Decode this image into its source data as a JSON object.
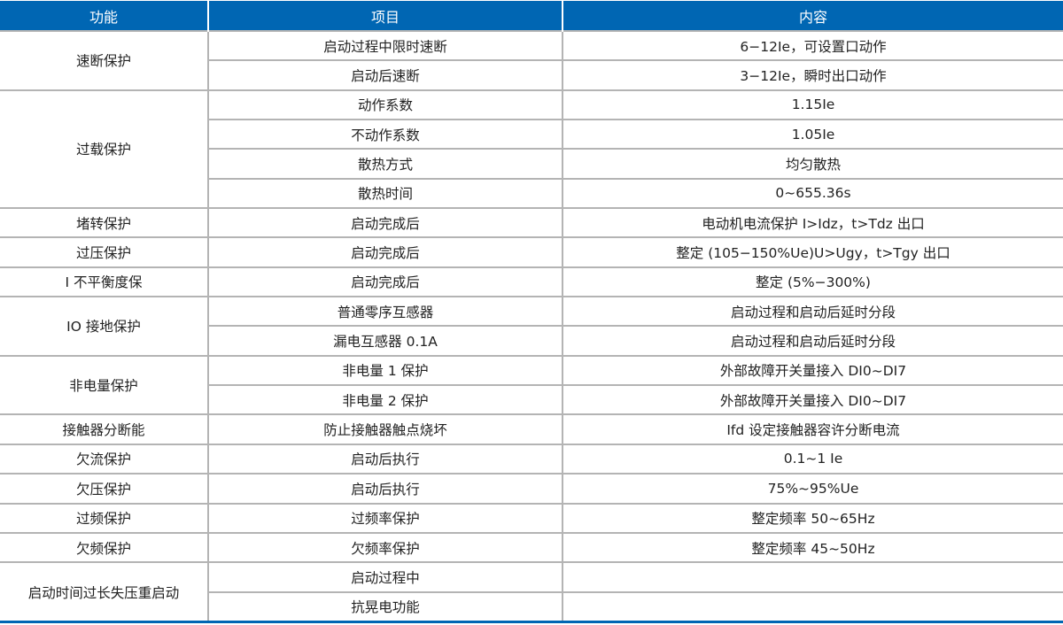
{
  "headers": [
    "功能",
    "项目",
    "内容"
  ],
  "groups": [
    {
      "name": "速断保护",
      "rows": [
        [
          "启动过程中限时速断",
          "6−12Ie，可设置口动作"
        ],
        [
          "启动后速断",
          "3−12Ie，瞬时出口动作"
        ]
      ]
    },
    {
      "name": "过载保护",
      "rows": [
        [
          "动作系数",
          "1.15Ie"
        ],
        [
          "不动作系数",
          "1.05Ie"
        ],
        [
          "散热方式",
          "均匀散热"
        ],
        [
          "散热时间",
          "0~655.36s"
        ]
      ]
    },
    {
      "name": "堵转保护",
      "rows": [
        [
          "启动完成后",
          "电动机电流保护 I>Idz，t>Tdz 出口"
        ]
      ]
    },
    {
      "name": "过压保护",
      "rows": [
        [
          "启动完成后",
          "整定 (105−150%Ue)U>Ugy，t>Tgy 出口"
        ]
      ]
    },
    {
      "name": "I 不平衡度保",
      "rows": [
        [
          "启动完成后",
          "整定 (5%−300%)"
        ]
      ]
    },
    {
      "name": "IO 接地保护",
      "rows": [
        [
          "普通零序互感器",
          "启动过程和启动后延时分段"
        ],
        [
          "漏电互感器 0.1A",
          "启动过程和启动后延时分段"
        ]
      ]
    },
    {
      "name": "非电量保护",
      "rows": [
        [
          "非电量 1 保护",
          "外部故障开关量接入 DI0~DI7"
        ],
        [
          "非电量 2 保护",
          "外部故障开关量接入 DI0~DI7"
        ]
      ]
    },
    {
      "name": "接触器分断能",
      "rows": [
        [
          "防止接触器触点烧坏",
          "Ifd 设定接触器容许分断电流"
        ]
      ]
    },
    {
      "name": "欠流保护",
      "rows": [
        [
          "启动后执行",
          "0.1~1 Ie"
        ]
      ]
    },
    {
      "name": "欠压保护",
      "rows": [
        [
          "启动后执行",
          "75%~95%Ue"
        ]
      ]
    },
    {
      "name": "过频保护",
      "rows": [
        [
          "过频率保护",
          "整定频率 50~65Hz"
        ]
      ]
    },
    {
      "name": "欠频保护",
      "rows": [
        [
          "欠频率保护",
          "整定频率 45~50Hz"
        ]
      ]
    },
    {
      "name": "启动时间过长失压重启动",
      "rows": [
        [
          "启动过程中",
          ""
        ],
        [
          "抗晃电功能",
          ""
        ]
      ]
    }
  ],
  "colors": {
    "header": "#0066b3",
    "border": "#b4b4b4"
  }
}
